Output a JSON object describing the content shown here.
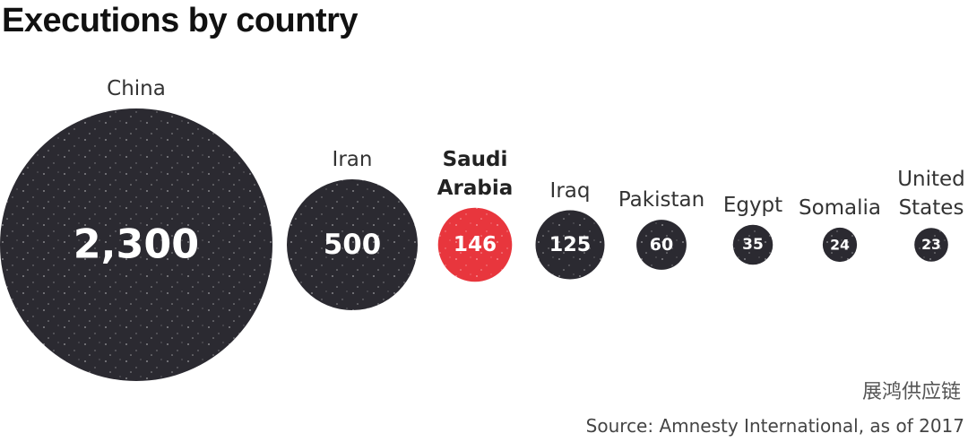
{
  "chart_data": {
    "type": "bubble",
    "title": "Executions by country",
    "categories": [
      "China",
      "Iran",
      "Saudi Arabia",
      "Iraq",
      "Pakistan",
      "Egypt",
      "Somalia",
      "United States"
    ],
    "values": [
      2300,
      500,
      146,
      125,
      60,
      35,
      24,
      23
    ],
    "value_labels": [
      "2,300",
      "500",
      "146",
      "125",
      "60",
      "35",
      "24",
      "23"
    ],
    "colors": [
      "#2b2a31",
      "#2b2a31",
      "#e8363d",
      "#2b2a31",
      "#2b2a31",
      "#2b2a31",
      "#2b2a31",
      "#2b2a31"
    ],
    "label_bold": [
      false,
      false,
      true,
      false,
      false,
      false,
      false,
      false
    ],
    "watermark": "展鸿供应链",
    "source": "Source: Amnesty International, as of 2017"
  }
}
